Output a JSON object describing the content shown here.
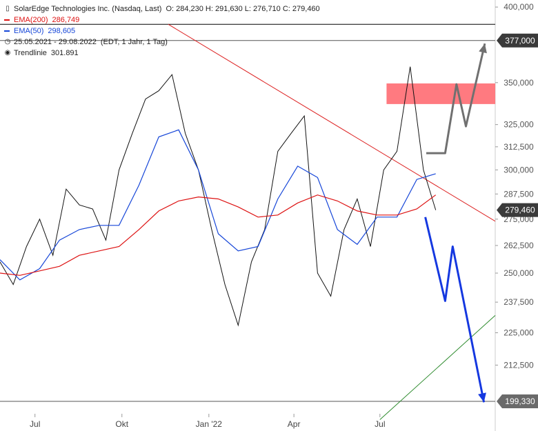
{
  "legend": {
    "title": "SolarEdge Technologies Inc. (Nasdaq, Last)",
    "ohlc": "O: 284,230  H: 291,630  L: 276,710  C: 279,460",
    "ema200_label": "EMA(200)",
    "ema200_value": "286,749",
    "ema50_label": "EMA(50)",
    "ema50_value": "298,605",
    "range": "25.05.2021 - 29.08.2022",
    "range_note": "(EDT, 1 Jahr, 1 Tag)",
    "trend_label": "Trendlinie",
    "trend_value": "301.891",
    "colors": {
      "ema200": "#dd1111",
      "ema50": "#1646d8",
      "candles": "#111111"
    }
  },
  "chart_data": {
    "type": "line",
    "title": "SolarEdge Technologies Inc. (Nasdaq, Last)",
    "y_axis": {
      "ticks": [
        400,
        350,
        325,
        312.5,
        300,
        287.5,
        275,
        262.5,
        250,
        237.5,
        225,
        212.5
      ],
      "tick_labels": [
        "400,000",
        "350,000",
        "325,000",
        "312,500",
        "300,000",
        "287,500",
        "275,000",
        "262,500",
        "250,000",
        "237,500",
        "225,000",
        "212,500"
      ],
      "ylim": [
        195,
        405
      ],
      "scale": "log",
      "position": "right"
    },
    "x_axis": {
      "labels": [
        "Jul",
        "Okt",
        "Jan '22",
        "Apr",
        "Jul"
      ],
      "label_dates": [
        "2021-07-01",
        "2021-10-01",
        "2022-01-01",
        "2022-04-01",
        "2022-07-01"
      ],
      "range": [
        "2021-05-25",
        "2022-10-31"
      ]
    },
    "markers": [
      {
        "label": "377,000",
        "value": 377.0,
        "style": "dark"
      },
      {
        "label": "279,460",
        "value": 279.46,
        "style": "dark"
      },
      {
        "label": "199,330",
        "value": 199.33,
        "style": "gray"
      }
    ],
    "horizontal_lines": [
      {
        "value": 388.0,
        "color": "#000000"
      },
      {
        "value": 377.0,
        "color": "#555555"
      },
      {
        "value": 199.33,
        "color": "#555555"
      }
    ],
    "trendlines": [
      {
        "name": "Trendlinie",
        "color": "#dd2222",
        "from": [
          "2021-11-19",
          388.0
        ],
        "to": [
          "2022-10-31",
          274.0
        ]
      },
      {
        "color": "#2e8b2e",
        "from": [
          "2022-07-01",
          193.0
        ],
        "to": [
          "2022-10-31",
          232.0
        ]
      }
    ],
    "zones": [
      {
        "color": "#ff7a80",
        "from_date": "2022-07-08",
        "to_date": "2022-10-31",
        "low": 337.0,
        "high": 349.5
      }
    ],
    "scenarios": [
      {
        "color": "#707070",
        "points": [
          [
            "2022-08-19",
            309.0
          ],
          [
            "2022-09-08",
            309.0
          ],
          [
            "2022-09-20",
            349.0
          ],
          [
            "2022-09-30",
            324.0
          ],
          [
            "2022-10-20",
            375.0
          ]
        ]
      },
      {
        "color": "#1538e0",
        "points": [
          [
            "2022-08-18",
            276.0
          ],
          [
            "2022-09-08",
            238.0
          ],
          [
            "2022-09-16",
            262.0
          ],
          [
            "2022-10-19",
            199.0
          ]
        ]
      }
    ],
    "series": [
      {
        "name": "EMA(200)",
        "color": "#dd1111",
        "x": [
          "2021-05-25",
          "2021-06-15",
          "2021-07-06",
          "2021-07-27",
          "2021-08-17",
          "2021-09-07",
          "2021-09-28",
          "2021-10-19",
          "2021-11-09",
          "2021-11-30",
          "2021-12-21",
          "2022-01-11",
          "2022-02-01",
          "2022-02-22",
          "2022-03-15",
          "2022-04-05",
          "2022-04-26",
          "2022-05-17",
          "2022-06-07",
          "2022-06-28",
          "2022-07-19",
          "2022-08-09",
          "2022-08-29"
        ],
        "y": [
          250,
          249,
          251,
          253,
          258,
          260,
          262,
          270,
          279,
          284,
          286,
          285,
          281,
          276,
          277,
          283,
          287,
          284,
          279,
          277,
          277,
          280,
          287
        ]
      },
      {
        "name": "EMA(50)",
        "color": "#1646d8",
        "x": [
          "2021-05-25",
          "2021-06-15",
          "2021-07-06",
          "2021-07-27",
          "2021-08-17",
          "2021-09-07",
          "2021-09-28",
          "2021-10-19",
          "2021-11-09",
          "2021-11-30",
          "2021-12-21",
          "2022-01-11",
          "2022-02-01",
          "2022-02-22",
          "2022-03-15",
          "2022-04-05",
          "2022-04-26",
          "2022-05-17",
          "2022-06-07",
          "2022-06-28",
          "2022-07-19",
          "2022-08-09",
          "2022-08-29"
        ],
        "y": [
          256,
          247,
          252,
          265,
          270,
          272,
          272,
          292,
          318,
          322,
          300,
          268,
          260,
          262,
          285,
          302,
          296,
          270,
          263,
          276,
          276,
          295,
          298
        ]
      },
      {
        "name": "Kurs (Close)",
        "color": "#111111",
        "x": [
          "2021-05-25",
          "2021-06-08",
          "2021-06-22",
          "2021-07-06",
          "2021-07-20",
          "2021-08-03",
          "2021-08-17",
          "2021-08-31",
          "2021-09-14",
          "2021-09-28",
          "2021-10-12",
          "2021-10-26",
          "2021-11-09",
          "2021-11-23",
          "2021-12-07",
          "2021-12-21",
          "2022-01-04",
          "2022-01-18",
          "2022-02-01",
          "2022-02-15",
          "2022-03-01",
          "2022-03-15",
          "2022-03-29",
          "2022-04-12",
          "2022-04-26",
          "2022-05-10",
          "2022-05-24",
          "2022-06-07",
          "2022-06-21",
          "2022-07-05",
          "2022-07-19",
          "2022-08-02",
          "2022-08-16",
          "2022-08-29"
        ],
        "y": [
          255,
          245,
          262,
          275,
          258,
          290,
          282,
          280,
          265,
          300,
          320,
          340,
          345,
          355,
          320,
          300,
          270,
          245,
          228,
          255,
          270,
          310,
          320,
          330,
          250,
          240,
          270,
          285,
          262,
          300,
          310,
          360,
          300,
          279.46
        ]
      }
    ]
  }
}
